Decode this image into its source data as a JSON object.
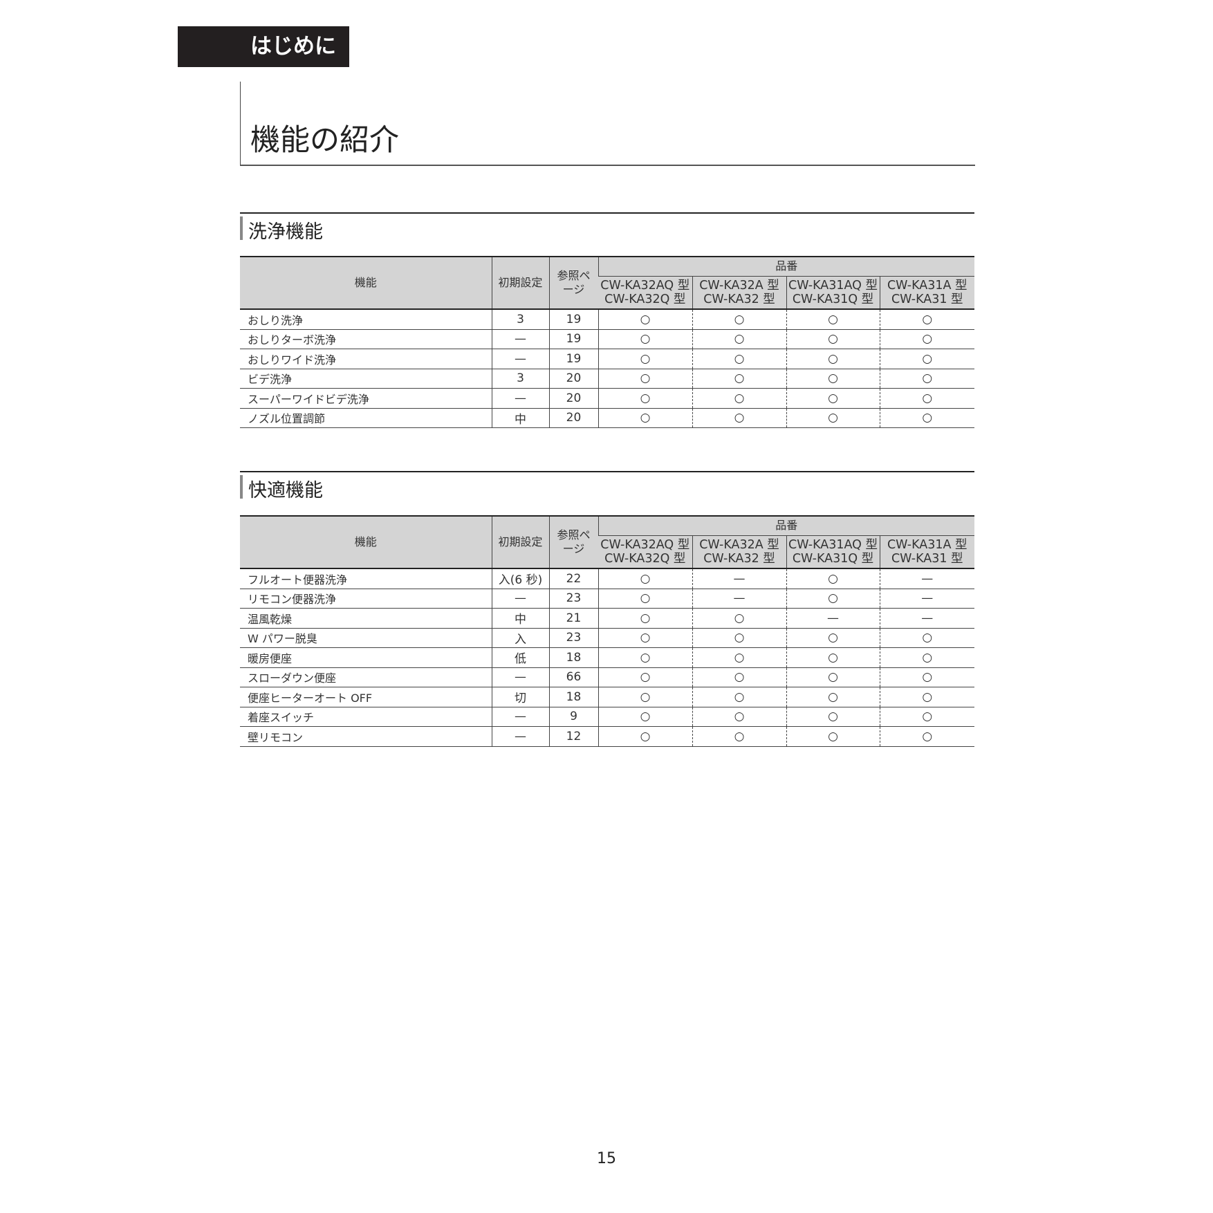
{
  "chapter": "はじめに",
  "title": "機能の紹介",
  "headers": {
    "function": "機能",
    "initial": "初期設定",
    "ref_page": "参照ページ",
    "product": "品番",
    "models": [
      [
        "CW-KA32AQ 型",
        "CW-KA32Q 型"
      ],
      [
        "CW-KA32A 型",
        "CW-KA32 型"
      ],
      [
        "CW-KA31AQ 型",
        "CW-KA31Q 型"
      ],
      [
        "CW-KA31A 型",
        "CW-KA31 型"
      ]
    ]
  },
  "sections": [
    {
      "title": "洗浄機能",
      "rows": [
        [
          "おしり洗浄",
          "3",
          "19",
          "○",
          "○",
          "○",
          "○"
        ],
        [
          "おしりターボ洗浄",
          "—",
          "19",
          "○",
          "○",
          "○",
          "○"
        ],
        [
          "おしりワイド洗浄",
          "—",
          "19",
          "○",
          "○",
          "○",
          "○"
        ],
        [
          "ビデ洗浄",
          "3",
          "20",
          "○",
          "○",
          "○",
          "○"
        ],
        [
          "スーパーワイドビデ洗浄",
          "—",
          "20",
          "○",
          "○",
          "○",
          "○"
        ],
        [
          "ノズル位置調節",
          "中",
          "20",
          "○",
          "○",
          "○",
          "○"
        ]
      ]
    },
    {
      "title": "快適機能",
      "rows": [
        [
          "フルオート便器洗浄",
          "入(6 秒)",
          "22",
          "○",
          "—",
          "○",
          "—"
        ],
        [
          "リモコン便器洗浄",
          "—",
          "23",
          "○",
          "—",
          "○",
          "—"
        ],
        [
          "温風乾燥",
          "中",
          "21",
          "○",
          "○",
          "—",
          "—"
        ],
        [
          "W パワー脱臭",
          "入",
          "23",
          "○",
          "○",
          "○",
          "○"
        ],
        [
          "暖房便座",
          "低",
          "18",
          "○",
          "○",
          "○",
          "○"
        ],
        [
          "スローダウン便座",
          "—",
          "66",
          "○",
          "○",
          "○",
          "○"
        ],
        [
          "便座ヒーターオート OFF",
          "切",
          "18",
          "○",
          "○",
          "○",
          "○"
        ],
        [
          "着座スイッチ",
          "—",
          "9",
          "○",
          "○",
          "○",
          "○"
        ],
        [
          "壁リモコン",
          "—",
          "12",
          "○",
          "○",
          "○",
          "○"
        ]
      ]
    }
  ],
  "page_number": "15"
}
